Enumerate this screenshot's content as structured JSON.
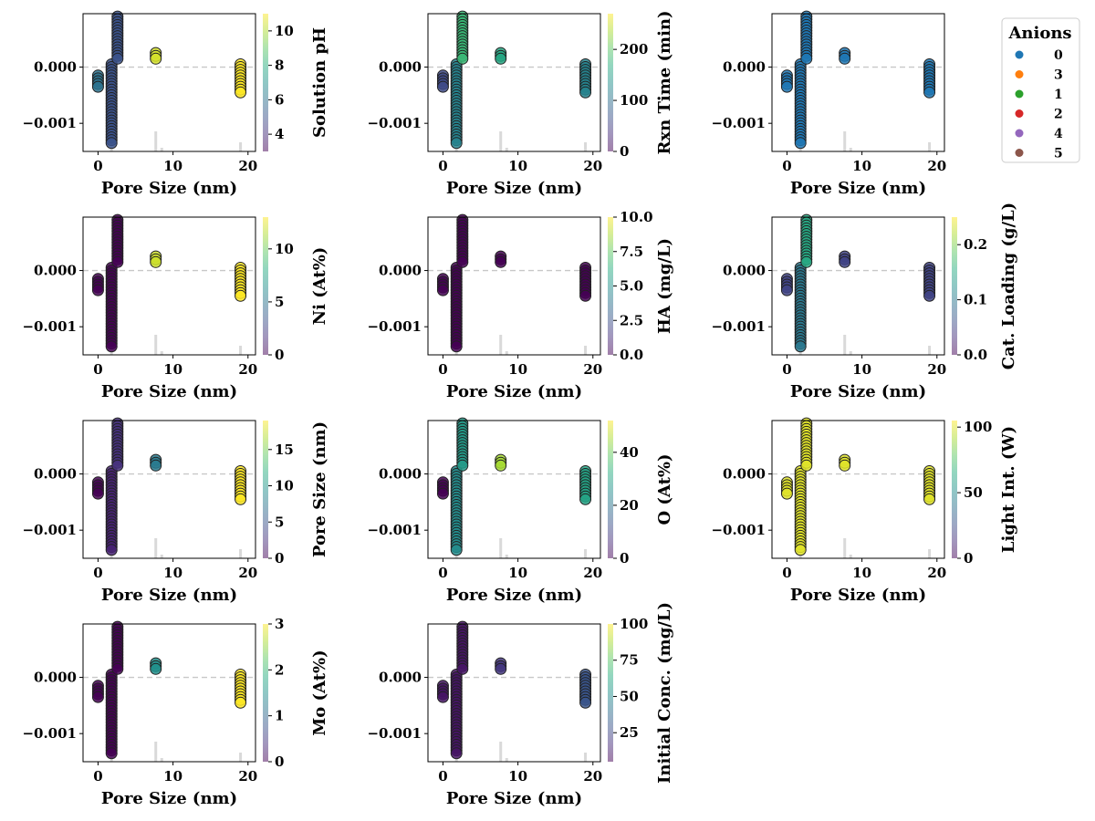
{
  "chart_data": [
    {
      "type": "scatter",
      "xlabel": "Pore Size (nm)",
      "colorbar": {
        "label": "Solution pH",
        "range": [
          3,
          11
        ],
        "ticks": [
          4,
          6,
          8,
          10
        ]
      },
      "xlim": [
        -2,
        21
      ],
      "ylim": [
        -0.0015,
        0.00095
      ],
      "xticks": [
        0,
        10,
        20
      ],
      "yticks": [
        0.0,
        -0.001
      ],
      "ytick_labels": [
        "0.000",
        "−0.001"
      ],
      "reference_line": 0,
      "groups": [
        {
          "x": 0,
          "c": 6
        },
        {
          "x": 1.8,
          "c": 5
        },
        {
          "x": 2.6,
          "c": 5
        },
        {
          "x": 7.7,
          "c": 10.5
        },
        {
          "x": 19,
          "c": 11
        }
      ]
    },
    {
      "type": "scatter",
      "xlabel": "Pore Size (nm)",
      "colorbar": {
        "label": "Rxn Time (min)",
        "range": [
          0,
          270
        ],
        "ticks": [
          0,
          100,
          200
        ]
      },
      "xlim": [
        -2,
        21
      ],
      "ylim": [
        -0.0015,
        0.00095
      ],
      "xticks": [
        0,
        10,
        20
      ],
      "yticks": [
        0.0,
        -0.001
      ],
      "ytick_labels": [
        "0.000",
        "−0.001"
      ],
      "reference_line": 0,
      "groups": [
        {
          "x": 0,
          "c": 60
        },
        {
          "x": 1.8,
          "c": 120
        },
        {
          "x": 2.6,
          "c": 180
        },
        {
          "x": 7.7,
          "c": 160
        },
        {
          "x": 19,
          "c": 120
        }
      ]
    },
    {
      "type": "scatter",
      "xlabel": "Pore Size (nm)",
      "xlim": [
        -2,
        21
      ],
      "ylim": [
        -0.0015,
        0.00095
      ],
      "xticks": [
        0,
        10,
        20
      ],
      "yticks": [
        0.0,
        -0.001
      ],
      "ytick_labels": [
        "0.000",
        "−0.001"
      ],
      "reference_line": 0,
      "legend": {
        "title": "Anions",
        "placement": "upper right outside",
        "entries": [
          {
            "label": "0",
            "color": "#1f77b4"
          },
          {
            "label": "3",
            "color": "#ff7f0e"
          },
          {
            "label": "1",
            "color": "#2ca02c"
          },
          {
            "label": "2",
            "color": "#d62728"
          },
          {
            "label": "4",
            "color": "#9467bd"
          },
          {
            "label": "5",
            "color": "#8c564b"
          }
        ]
      },
      "groups": [
        {
          "x": 0,
          "anion": "0"
        },
        {
          "x": 1.8,
          "anion": "0"
        },
        {
          "x": 2.6,
          "anion": "0"
        },
        {
          "x": 7.7,
          "anion": "0"
        },
        {
          "x": 19,
          "anion": "0"
        }
      ]
    },
    {
      "type": "scatter",
      "xlabel": "Pore Size (nm)",
      "colorbar": {
        "label": "Ni (At%)",
        "range": [
          0,
          13
        ],
        "ticks": [
          0,
          5,
          10
        ]
      },
      "xlim": [
        -2,
        21
      ],
      "ylim": [
        -0.0015,
        0.00095
      ],
      "xticks": [
        0,
        10,
        20
      ],
      "yticks": [
        0.0,
        -0.001
      ],
      "ytick_labels": [
        "0.000",
        "−0.001"
      ],
      "reference_line": 0,
      "groups": [
        {
          "x": 0,
          "c": 0
        },
        {
          "x": 1.8,
          "c": 0
        },
        {
          "x": 2.6,
          "c": 0
        },
        {
          "x": 7.7,
          "c": 12
        },
        {
          "x": 19,
          "c": 13
        }
      ]
    },
    {
      "type": "scatter",
      "xlabel": "Pore Size (nm)",
      "colorbar": {
        "label": "HA (mg/L)",
        "range": [
          0,
          10
        ],
        "ticks": [
          0.0,
          2.5,
          5.0,
          7.5,
          10.0
        ],
        "tick_labels": [
          "0.0",
          "2.5",
          "5.0",
          "7.5",
          "10.0"
        ]
      },
      "xlim": [
        -2,
        21
      ],
      "ylim": [
        -0.0015,
        0.00095
      ],
      "xticks": [
        0,
        10,
        20
      ],
      "yticks": [
        0.0,
        -0.001
      ],
      "ytick_labels": [
        "0.000",
        "−0.001"
      ],
      "reference_line": 0,
      "groups": [
        {
          "x": 0,
          "c": 0
        },
        {
          "x": 1.8,
          "c": 0
        },
        {
          "x": 2.6,
          "c": 0
        },
        {
          "x": 7.7,
          "c": 0
        },
        {
          "x": 19,
          "c": 0
        }
      ]
    },
    {
      "type": "scatter",
      "xlabel": "Pore Size (nm)",
      "colorbar": {
        "label": "Cat. Loading (g/L)",
        "range": [
          0,
          0.25
        ],
        "ticks": [
          0.0,
          0.1,
          0.2
        ],
        "tick_labels": [
          "0.0",
          "0.1",
          "0.2"
        ]
      },
      "xlim": [
        -2,
        21
      ],
      "ylim": [
        -0.0015,
        0.00095
      ],
      "xticks": [
        0,
        10,
        20
      ],
      "yticks": [
        0.0,
        -0.001
      ],
      "ytick_labels": [
        "0.000",
        "−0.001"
      ],
      "reference_line": 0,
      "groups": [
        {
          "x": 0,
          "c": 0.05
        },
        {
          "x": 1.8,
          "c": 0.1
        },
        {
          "x": 2.6,
          "c": 0.15
        },
        {
          "x": 7.7,
          "c": 0.05
        },
        {
          "x": 19,
          "c": 0.05
        }
      ]
    },
    {
      "type": "scatter",
      "xlabel": "Pore Size (nm)",
      "colorbar": {
        "label": "Pore Size (nm)",
        "range": [
          0,
          19
        ],
        "ticks": [
          0,
          5,
          10,
          15
        ]
      },
      "xlim": [
        -2,
        21
      ],
      "ylim": [
        -0.0015,
        0.00095
      ],
      "xticks": [
        0,
        10,
        20
      ],
      "yticks": [
        0.0,
        -0.001
      ],
      "ytick_labels": [
        "0.000",
        "−0.001"
      ],
      "reference_line": 0,
      "groups": [
        {
          "x": 0,
          "c": 0
        },
        {
          "x": 1.8,
          "c": 1.8
        },
        {
          "x": 2.6,
          "c": 2.6
        },
        {
          "x": 7.7,
          "c": 7.7
        },
        {
          "x": 19,
          "c": 19
        }
      ]
    },
    {
      "type": "scatter",
      "xlabel": "Pore Size (nm)",
      "colorbar": {
        "label": "O (At%)",
        "range": [
          0,
          52
        ],
        "ticks": [
          0,
          20,
          40
        ]
      },
      "xlim": [
        -2,
        21
      ],
      "ylim": [
        -0.0015,
        0.00095
      ],
      "xticks": [
        0,
        10,
        20
      ],
      "yticks": [
        0.0,
        -0.001
      ],
      "ytick_labels": [
        "0.000",
        "−0.001"
      ],
      "reference_line": 0,
      "groups": [
        {
          "x": 0,
          "c": 0
        },
        {
          "x": 1.8,
          "c": 25
        },
        {
          "x": 2.6,
          "c": 28
        },
        {
          "x": 7.7,
          "c": 45
        },
        {
          "x": 19,
          "c": 30
        }
      ]
    },
    {
      "type": "scatter",
      "xlabel": "Pore Size (nm)",
      "colorbar": {
        "label": "Light Int. (W)",
        "range": [
          0,
          105
        ],
        "ticks": [
          0,
          50,
          100
        ]
      },
      "xlim": [
        -2,
        21
      ],
      "ylim": [
        -0.0015,
        0.00095
      ],
      "xticks": [
        0,
        10,
        20
      ],
      "yticks": [
        0.0,
        -0.001
      ],
      "ytick_labels": [
        "0.000",
        "−0.001"
      ],
      "reference_line": 0,
      "groups": [
        {
          "x": 0,
          "c": 100
        },
        {
          "x": 1.8,
          "c": 100
        },
        {
          "x": 2.6,
          "c": 100
        },
        {
          "x": 7.7,
          "c": 100
        },
        {
          "x": 19,
          "c": 100
        }
      ]
    },
    {
      "type": "scatter",
      "xlabel": "Pore Size (nm)",
      "colorbar": {
        "label": "Mo (At%)",
        "range": [
          0,
          3
        ],
        "ticks": [
          0,
          1,
          2,
          3
        ]
      },
      "xlim": [
        -2,
        21
      ],
      "ylim": [
        -0.0015,
        0.00095
      ],
      "xticks": [
        0,
        10,
        20
      ],
      "yticks": [
        0.0,
        -0.001
      ],
      "ytick_labels": [
        "0.000",
        "−0.001"
      ],
      "reference_line": 0,
      "groups": [
        {
          "x": 0,
          "c": 0
        },
        {
          "x": 1.8,
          "c": 0
        },
        {
          "x": 2.6,
          "c": 0
        },
        {
          "x": 7.7,
          "c": 1.5
        },
        {
          "x": 19,
          "c": 3
        }
      ]
    },
    {
      "type": "scatter",
      "xlabel": "Pore Size (nm)",
      "colorbar": {
        "label": "Initial Conc. (mg/L)",
        "range": [
          5,
          100
        ],
        "ticks": [
          25,
          50,
          75,
          100
        ]
      },
      "xlim": [
        -2,
        21
      ],
      "ylim": [
        -0.0015,
        0.00095
      ],
      "xticks": [
        0,
        10,
        20
      ],
      "yticks": [
        0.0,
        -0.001
      ],
      "ytick_labels": [
        "0.000",
        "−0.001"
      ],
      "reference_line": 0,
      "groups": [
        {
          "x": 0,
          "c": 10
        },
        {
          "x": 1.8,
          "c": 10
        },
        {
          "x": 2.6,
          "c": 10
        },
        {
          "x": 7.7,
          "c": 20
        },
        {
          "x": 19,
          "c": 30
        }
      ]
    }
  ]
}
